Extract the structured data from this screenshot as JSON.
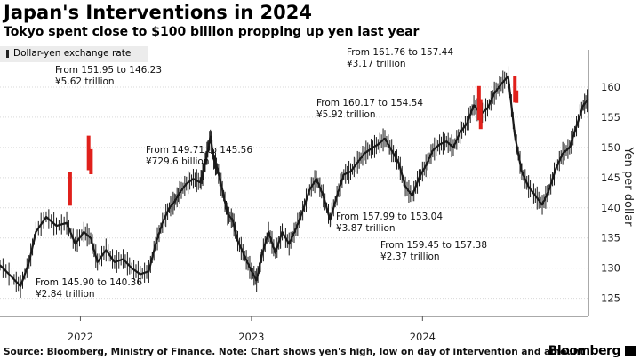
{
  "title": "Japan's Interventions in 2024",
  "subtitle": "Tokyo spent close to $100 billion propping up yen last year",
  "source": "Source: Bloomberg, Ministry of Finance. Note: Chart shows yen's high, low on day of intervention and amount",
  "brand": "Bloomberg",
  "colors": {
    "candles": "#1a1a1a",
    "intervention": "#e0201b",
    "grid": "#d9d9d9",
    "legend_bg": "#ececec"
  },
  "chart_data": {
    "type": "line",
    "title": "Japan's Interventions in 2024",
    "subtitle": "Tokyo spent close to $100 billion propping up yen last year",
    "ylabel": "Yen per dollar",
    "xlabel": "",
    "ylim": [
      122,
      165
    ],
    "yticks": [
      125,
      130,
      135,
      140,
      145,
      150,
      155,
      160
    ],
    "y_scale": "linear",
    "y_axis_position": "right",
    "grid": "horizontal",
    "legend": {
      "entries": [
        "Dollar-yen exchange rate"
      ],
      "placement": "top-left"
    },
    "xticks": [
      {
        "label": "2022",
        "x": 2022.0
      },
      {
        "label": "2023",
        "x": 2023.0
      },
      {
        "label": "2024",
        "x": 2024.0
      }
    ],
    "xlim": [
      2021.53,
      2024.97
    ],
    "series": [
      {
        "name": "Dollar-yen exchange rate",
        "x": [
          2021.53,
          2021.6,
          2021.65,
          2021.7,
          2021.74,
          2021.8,
          2021.86,
          2021.92,
          2021.97,
          2022.02,
          2022.06,
          2022.1,
          2022.15,
          2022.2,
          2022.25,
          2022.3,
          2022.35,
          2022.4,
          2022.44,
          2022.48,
          2022.52,
          2022.55,
          2022.58,
          2022.62,
          2022.66,
          2022.7,
          2022.72,
          2022.74,
          2022.76,
          2022.78,
          2022.8,
          2022.83,
          2022.86,
          2022.89,
          2022.92,
          2022.96,
          2023.0,
          2023.03,
          2023.06,
          2023.1,
          2023.14,
          2023.18,
          2023.22,
          2023.26,
          2023.3,
          2023.34,
          2023.38,
          2023.42,
          2023.46,
          2023.5,
          2023.54,
          2023.58,
          2023.62,
          2023.66,
          2023.7,
          2023.74,
          2023.78,
          2023.82,
          2023.86,
          2023.9,
          2023.94,
          2023.98,
          2024.02,
          2024.06,
          2024.1,
          2024.14,
          2024.18,
          2024.22,
          2024.26,
          2024.3,
          2024.34,
          2024.38,
          2024.42,
          2024.46,
          2024.5,
          2024.54,
          2024.58,
          2024.62,
          2024.66,
          2024.7,
          2024.74,
          2024.78,
          2024.82,
          2024.86,
          2024.9,
          2024.94,
          2024.97
        ],
        "y": [
          130.5,
          128.5,
          127.0,
          131.0,
          136.0,
          138.5,
          137.0,
          137.5,
          134.0,
          136.0,
          135.0,
          131.0,
          133.0,
          131.0,
          131.5,
          130.0,
          129.0,
          129.5,
          134.0,
          137.5,
          140.0,
          141.0,
          142.5,
          144.0,
          144.8,
          144.2,
          146.0,
          149.0,
          151.8,
          148.0,
          146.5,
          143.0,
          139.0,
          138.0,
          134.5,
          132.0,
          129.5,
          128.0,
          132.0,
          136.0,
          132.5,
          136.0,
          134.0,
          136.5,
          139.5,
          143.0,
          144.8,
          142.0,
          138.0,
          142.0,
          145.5,
          146.0,
          147.5,
          149.0,
          149.8,
          150.5,
          151.5,
          149.5,
          147.5,
          143.5,
          142.0,
          145.0,
          147.0,
          149.5,
          150.5,
          151.0,
          150.0,
          152.5,
          154.0,
          157.0,
          155.5,
          156.5,
          159.0,
          160.5,
          161.8,
          152.0,
          146.0,
          143.5,
          142.0,
          140.5,
          143.0,
          146.5,
          149.0,
          150.0,
          153.5,
          157.0,
          158.0
        ]
      }
    ],
    "interventions": [
      {
        "x": 2021.94,
        "high": 145.9,
        "low": 140.36,
        "label_range": "From 145.90 to 140.36",
        "label_amount": "¥2.84 trillion"
      },
      {
        "x": 2022.048,
        "high": 151.95,
        "low": 146.23,
        "label_range": "From 151.95 to 146.23",
        "label_amount": "¥5.62 trillion"
      },
      {
        "x": 2022.062,
        "high": 149.71,
        "low": 145.56,
        "label_range": "From 149.71 to 145.56",
        "label_amount": "¥729.6 billion"
      },
      {
        "x": 2024.33,
        "high": 160.17,
        "low": 154.54,
        "label_range": "From 160.17 to 154.54",
        "label_amount": "¥5.92 trillion"
      },
      {
        "x": 2024.34,
        "high": 157.99,
        "low": 153.04,
        "label_range": "From 157.99 to 153.04",
        "label_amount": "¥3.87 trillion"
      },
      {
        "x": 2024.54,
        "high": 161.76,
        "low": 157.44,
        "label_range": "From 161.76 to 157.44",
        "label_amount": "¥3.17 trillion"
      },
      {
        "x": 2024.55,
        "high": 159.45,
        "low": 157.38,
        "label_range": "From 159.45 to 157.38",
        "label_amount": "¥2.37 trillion"
      }
    ]
  }
}
